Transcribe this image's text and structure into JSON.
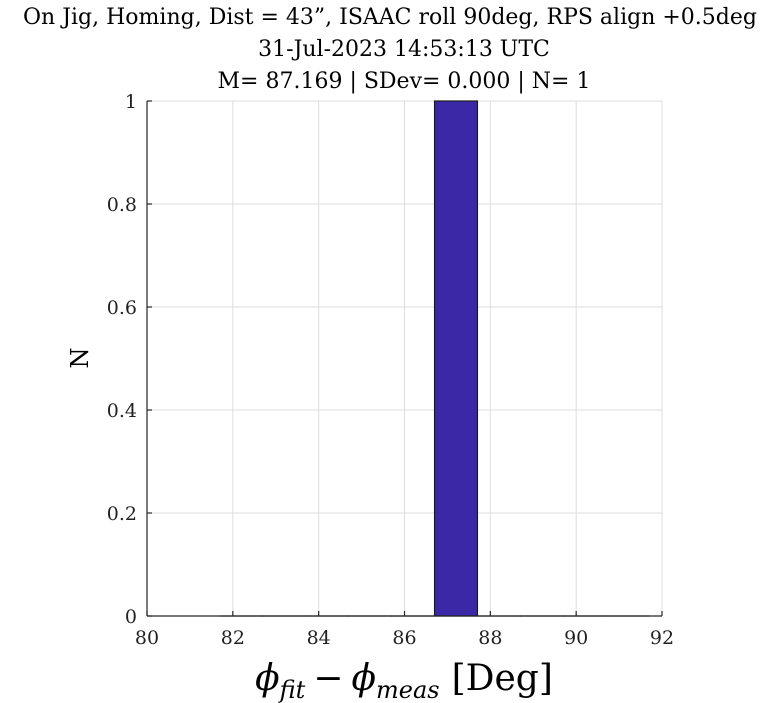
{
  "chart_data": {
    "type": "bar",
    "title_lines": [
      "On Jig, Homing, Dist = 43”, ISAAC roll 90deg, RPS align +0.5deg",
      "31-Jul-2023 14:53:13 UTC",
      "M= 87.169 | SDev= 0.000 | N= 1"
    ],
    "xlabel": {
      "phi": "ϕ",
      "sub1": "fit",
      "minus": "−",
      "sub2": "meas",
      "unit": "[Deg]"
    },
    "ylabel": "N",
    "xlim": [
      80,
      92
    ],
    "ylim": [
      0,
      1
    ],
    "xticks": [
      80,
      82,
      84,
      86,
      88,
      90,
      92
    ],
    "xtick_labels": [
      "80",
      "82",
      "84",
      "86",
      "88",
      "90",
      "92"
    ],
    "yticks": [
      0,
      0.2,
      0.4,
      0.6,
      0.8,
      1
    ],
    "ytick_labels": [
      "0",
      "0.2",
      "0.4",
      "0.6",
      "0.8",
      "1"
    ],
    "grid": true,
    "bins": [
      {
        "x0": 81.7,
        "x1": 82.7,
        "value": 0
      },
      {
        "x0": 82.7,
        "x1": 83.7,
        "value": 0
      },
      {
        "x0": 83.7,
        "x1": 84.7,
        "value": 0
      },
      {
        "x0": 84.7,
        "x1": 85.7,
        "value": 0
      },
      {
        "x0": 85.7,
        "x1": 86.7,
        "value": 0
      },
      {
        "x0": 86.7,
        "x1": 87.7,
        "value": 1
      },
      {
        "x0": 87.7,
        "x1": 88.7,
        "value": 0
      },
      {
        "x0": 88.7,
        "x1": 89.7,
        "value": 0
      },
      {
        "x0": 89.7,
        "x1": 90.7,
        "value": 0
      },
      {
        "x0": 90.7,
        "x1": 91.7,
        "value": 0
      }
    ],
    "bar_color": "#3b28a6"
  }
}
